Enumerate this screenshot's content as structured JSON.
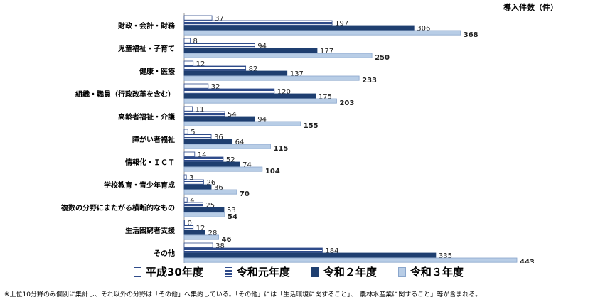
{
  "chart_data": {
    "type": "bar",
    "orientation": "horizontal",
    "unit_label": "導入件数（件）",
    "categories": [
      "財政・会計・財務",
      "児童福祉・子育て",
      "健康・医療",
      "組織・職員（行政改革を含む）",
      "高齢者福祉・介護",
      "障がい者福祉",
      "情報化・ＩＣＴ",
      "学校教育・青少年育成",
      "複数の分野にまたがる横断的なもの",
      "生活困窮者支援",
      "その他"
    ],
    "series": [
      {
        "name": "平成30年度",
        "values": [
          37,
          8,
          12,
          32,
          11,
          5,
          14,
          3,
          4,
          0,
          38
        ],
        "color": "#ffffff",
        "border": "#2f4b8a",
        "pattern": "none"
      },
      {
        "name": "令和元年度",
        "values": [
          197,
          94,
          82,
          120,
          54,
          36,
          52,
          26,
          25,
          12,
          184
        ],
        "color": "#ffffff",
        "border": "#2f4b8a",
        "pattern": "horizontal-lines"
      },
      {
        "name": "令和２年度",
        "values": [
          306,
          177,
          137,
          175,
          94,
          64,
          74,
          36,
          53,
          28,
          335
        ],
        "color": "#1f3f70",
        "border": "#1f3f70",
        "pattern": "none"
      },
      {
        "name": "令和３年度",
        "values": [
          368,
          250,
          233,
          203,
          155,
          115,
          104,
          70,
          54,
          46,
          443
        ],
        "color": "#b8cde6",
        "border": "#8aa6cc",
        "pattern": "none"
      }
    ],
    "xlim": [
      0,
      443
    ],
    "grid": false,
    "legend_position": "bottom"
  },
  "footnote": "※上位10分野のみ個別に集計し、それ以外の分野は「その他」へ集約している。「その他」には「生活環境に関すること」、「農林水産業に関すること」等が含まれる。"
}
